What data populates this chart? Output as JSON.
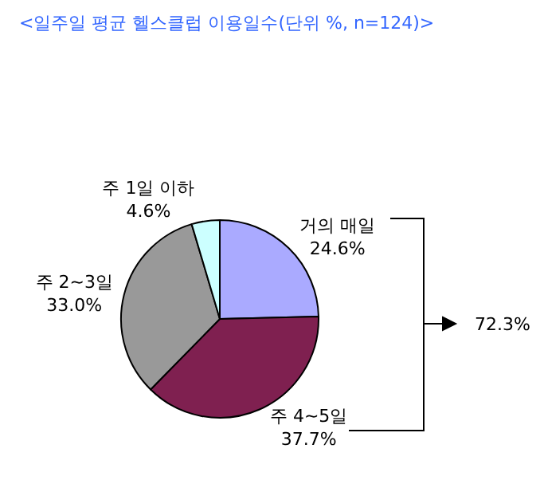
{
  "chart_data": {
    "type": "pie",
    "title": "<일주일 평균 헬스클럽 이용일수(단위 %, n=124)>",
    "categories": [
      "거의 매일",
      "주 4~5일",
      "주 2~3일",
      "주 1일 이하"
    ],
    "values": [
      24.6,
      37.7,
      33.0,
      4.6
    ],
    "value_labels": [
      "24.6%",
      "37.7%",
      "33.0%",
      "4.6%"
    ],
    "colors": [
      "#aaaaff",
      "#7f2050",
      "#999999",
      "#ccffff"
    ],
    "annotations": [
      "72.3%"
    ],
    "legend": false
  }
}
